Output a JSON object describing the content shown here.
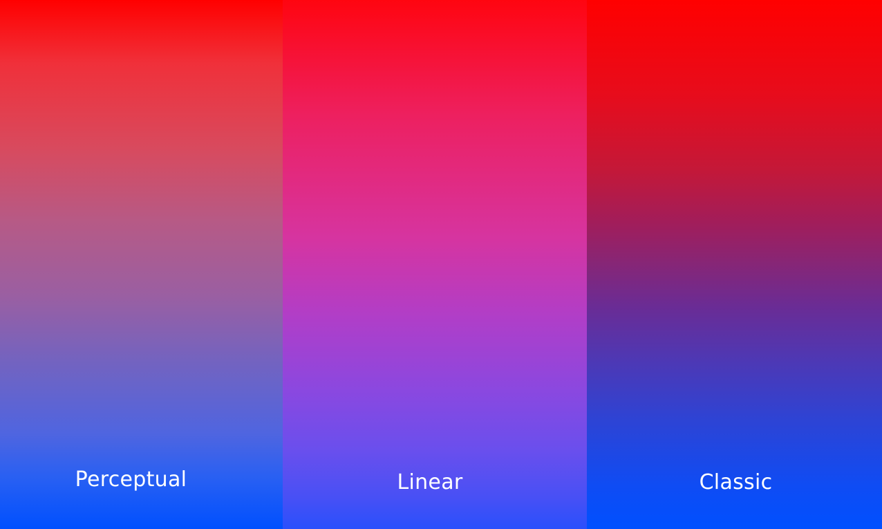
{
  "panels": {
    "perceptual": {
      "label": "Perceptual",
      "top_color": "#ff0000",
      "bottom_color": "#0050ff"
    },
    "linear": {
      "label": "Linear",
      "top_color": "#ff0510",
      "bottom_color": "#2a50fc"
    },
    "classic": {
      "label": "Classic",
      "top_color": "#ff0000",
      "bottom_color": "#0050ff"
    }
  }
}
